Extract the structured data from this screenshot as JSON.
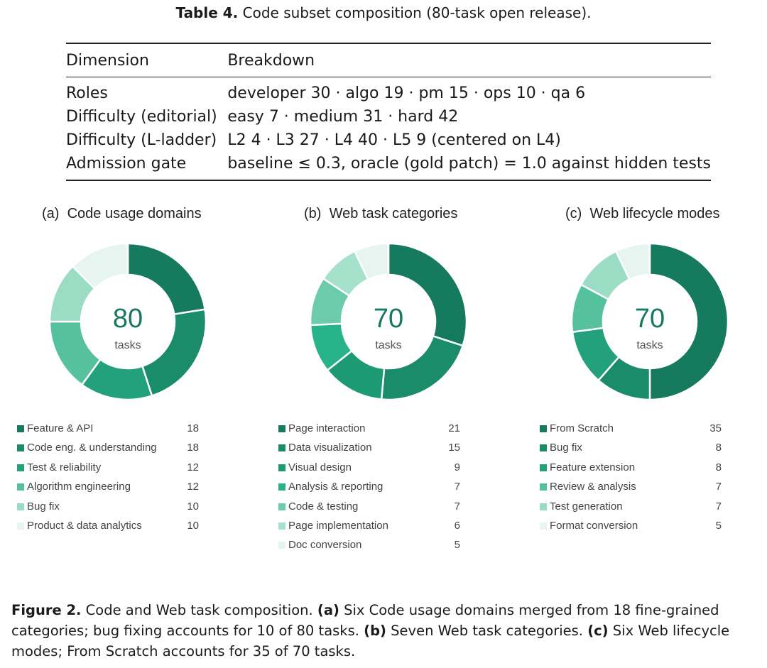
{
  "table": {
    "caption_label": "Table 4.",
    "caption_text": " Code subset composition (80-task open release).",
    "headers": [
      "Dimension",
      "Breakdown"
    ],
    "rows": [
      {
        "dimension": "Roles",
        "breakdown": "developer 30 · algo 19 · pm 15 · ops 10 · qa 6"
      },
      {
        "dimension": "Difficulty (editorial)",
        "breakdown": "easy 7 · medium 31 · hard 42"
      },
      {
        "dimension": "Difficulty (L-ladder)",
        "breakdown": "L2 4 · L3 27 · L4 40 · L5 9 (centered on L4)"
      },
      {
        "dimension": "Admission gate",
        "breakdown": "baseline ≤ 0.3, oracle (gold patch) = 1.0 against hidden tests"
      }
    ]
  },
  "chart_data": [
    {
      "type": "pie",
      "donut": true,
      "panel_label": "(a)",
      "title": "Code usage domains",
      "center_value": "80",
      "center_label": "tasks",
      "categories": [
        "Feature & API",
        "Code eng. & understanding",
        "Test & reliability",
        "Algorithm engineering",
        "Bug fix",
        "Product & data analytics"
      ],
      "values": [
        18,
        18,
        12,
        12,
        10,
        10
      ],
      "colors": [
        "#167a5f",
        "#1a8c6a",
        "#23a07c",
        "#55c19d",
        "#9adcc4",
        "#e6f5ef"
      ]
    },
    {
      "type": "pie",
      "donut": true,
      "panel_label": "(b)",
      "title": "Web task categories",
      "center_value": "70",
      "center_label": "tasks",
      "categories": [
        "Page interaction",
        "Data visualization",
        "Visual design",
        "Analysis & reporting",
        "Code & testing",
        "Page implementation",
        "Doc conversion"
      ],
      "values": [
        21,
        15,
        9,
        7,
        7,
        6,
        5
      ],
      "colors": [
        "#167a5f",
        "#1a8c6a",
        "#1c9a72",
        "#27b28a",
        "#6ccbab",
        "#a6e1cc",
        "#e6f5ef"
      ]
    },
    {
      "type": "pie",
      "donut": true,
      "panel_label": "(c)",
      "title": "Web lifecycle modes",
      "center_value": "70",
      "center_label": "tasks",
      "categories": [
        "From Scratch",
        "Bug fix",
        "Feature extension",
        "Review & analysis",
        "Test generation",
        "Format conversion"
      ],
      "values": [
        35,
        8,
        8,
        7,
        7,
        5
      ],
      "colors": [
        "#167a5f",
        "#1a8c6a",
        "#23a07c",
        "#55c19d",
        "#9adcc4",
        "#e6f5ef"
      ]
    }
  ],
  "figure_caption": {
    "label": "Figure 2.",
    "intro": "  Code and Web task composition. ",
    "a_label": "(a)",
    "a_text": " Six Code usage domains merged from 18 fine-grained categories; bug fixing accounts for 10 of 80 tasks. ",
    "b_label": "(b)",
    "b_text": " Seven Web task categories. ",
    "c_label": "(c)",
    "c_text": " Six Web lifecycle modes; From Scratch accounts for 35 of 70 tasks."
  }
}
